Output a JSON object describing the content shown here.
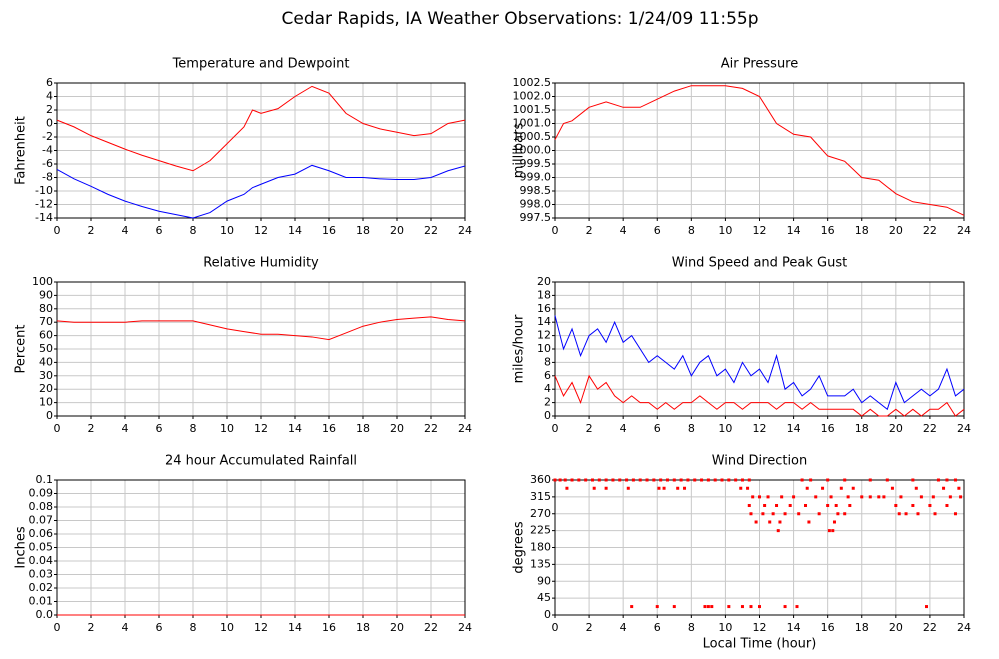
{
  "title": "Cedar Rapids, IA Weather Observations: 1/24/09 11:55p",
  "chart_data": [
    {
      "type": "line",
      "title": "Temperature and Dewpoint",
      "y_label": "Fahrenheit",
      "x": [
        0,
        1,
        2,
        3,
        4,
        5,
        6,
        7,
        8,
        9,
        10,
        11,
        11.5,
        12,
        13,
        14,
        15,
        16,
        17,
        18,
        19,
        20,
        21,
        22,
        23,
        24
      ],
      "series": [
        {
          "color": "#ff0000",
          "values": [
            0.5,
            -0.5,
            -1.8,
            -2.8,
            -3.8,
            -4.7,
            -5.5,
            -6.3,
            -7,
            -5.5,
            -3,
            -0.5,
            2,
            1.5,
            2.2,
            4,
            5.5,
            4.5,
            1.5,
            0,
            -0.8,
            -1.3,
            -1.8,
            -1.5,
            0,
            0.5
          ]
        },
        {
          "color": "#0000ff",
          "values": [
            -6.8,
            -8.2,
            -9.3,
            -10.5,
            -11.5,
            -12.3,
            -13,
            -13.5,
            -14,
            -13.2,
            -11.5,
            -10.5,
            -9.5,
            -9,
            -8,
            -7.5,
            -6.2,
            -7,
            -8,
            -8,
            -8.2,
            -8.3,
            -8.3,
            -8,
            -7,
            -6.3
          ]
        }
      ],
      "xlim": [
        0,
        24
      ],
      "xticks": [
        0,
        2,
        4,
        6,
        8,
        10,
        12,
        14,
        16,
        18,
        20,
        22,
        24
      ],
      "ylim": [
        -14,
        6
      ],
      "yticks": [
        -14,
        -12,
        -10,
        -8,
        -6,
        -4,
        -2,
        0,
        2,
        4,
        6
      ],
      "grid": true
    },
    {
      "type": "line",
      "title": "Air Pressure",
      "y_label": "millibars",
      "x": [
        0,
        0.5,
        1,
        2,
        3,
        4,
        5,
        6,
        7,
        8,
        9,
        10,
        11,
        12,
        13,
        14,
        15,
        16,
        17,
        18,
        19,
        20,
        21,
        22,
        23,
        24
      ],
      "series": [
        {
          "color": "#ff0000",
          "values": [
            1000.4,
            1001,
            1001.1,
            1001.6,
            1001.8,
            1001.6,
            1001.6,
            1001.9,
            1002.2,
            1002.4,
            1002.4,
            1002.4,
            1002.3,
            1002,
            1001,
            1000.6,
            1000.5,
            999.8,
            999.6,
            999,
            998.9,
            998.4,
            998.1,
            998,
            997.9,
            997.6
          ]
        }
      ],
      "xlim": [
        0,
        24
      ],
      "xticks": [
        0,
        2,
        4,
        6,
        8,
        10,
        12,
        14,
        16,
        18,
        20,
        22,
        24
      ],
      "ylim": [
        997.5,
        1002.5
      ],
      "yticks": [
        997.5,
        {
          "value": 998,
          "label": "998.0"
        },
        998.5,
        {
          "value": 999,
          "label": "999.0"
        },
        999.5,
        {
          "value": 1000,
          "label": "1000.0"
        },
        1000.5,
        {
          "value": 1001,
          "label": "1001.0"
        },
        1001.5,
        {
          "value": 1002,
          "label": "1002.0"
        },
        1002.5
      ],
      "grid": true
    },
    {
      "type": "line",
      "title": "Relative Humidity",
      "y_label": "Percent",
      "x": [
        0,
        1,
        2,
        3,
        4,
        5,
        6,
        7,
        8,
        9,
        10,
        11,
        12,
        13,
        14,
        15,
        16,
        17,
        18,
        19,
        20,
        21,
        22,
        23,
        24
      ],
      "series": [
        {
          "color": "#ff0000",
          "values": [
            71,
            70,
            70,
            70,
            70,
            71,
            71,
            71,
            71,
            68,
            65,
            63,
            61,
            61,
            60,
            59,
            57,
            62,
            67,
            70,
            72,
            73,
            74,
            72,
            71
          ]
        }
      ],
      "xlim": [
        0,
        24
      ],
      "xticks": [
        0,
        2,
        4,
        6,
        8,
        10,
        12,
        14,
        16,
        18,
        20,
        22,
        24
      ],
      "ylim": [
        0,
        100
      ],
      "yticks": [
        0,
        10,
        20,
        30,
        40,
        50,
        60,
        70,
        80,
        90,
        100
      ],
      "grid": true
    },
    {
      "type": "line",
      "title": "Wind Speed and Peak Gust",
      "y_label": "miles/hour",
      "x": [
        0,
        0.5,
        1,
        1.5,
        2,
        2.5,
        3,
        3.5,
        4,
        4.5,
        5,
        5.5,
        6,
        6.5,
        7,
        7.5,
        8,
        8.5,
        9,
        9.5,
        10,
        10.5,
        11,
        11.5,
        12,
        12.5,
        13,
        13.5,
        14,
        14.5,
        15,
        15.5,
        16,
        16.5,
        17,
        17.5,
        18,
        18.5,
        19,
        19.5,
        20,
        20.5,
        21,
        21.5,
        22,
        22.5,
        23,
        23.5,
        24
      ],
      "series": [
        {
          "color": "#0000ff",
          "values": [
            15,
            10,
            13,
            9,
            12,
            13,
            11,
            14,
            11,
            12,
            10,
            8,
            9,
            8,
            7,
            9,
            6,
            8,
            9,
            6,
            7,
            5,
            8,
            6,
            7,
            5,
            9,
            4,
            5,
            3,
            4,
            6,
            3,
            3,
            3,
            4,
            2,
            3,
            2,
            1,
            5,
            2,
            3,
            4,
            3,
            4,
            7,
            3,
            4
          ]
        },
        {
          "color": "#ff0000",
          "values": [
            6,
            3,
            5,
            2,
            6,
            4,
            5,
            3,
            2,
            3,
            2,
            2,
            1,
            2,
            1,
            2,
            2,
            3,
            2,
            1,
            2,
            2,
            1,
            2,
            2,
            2,
            1,
            2,
            2,
            1,
            2,
            1,
            1,
            1,
            1,
            1,
            0,
            1,
            0,
            0,
            1,
            0,
            1,
            0,
            1,
            1,
            2,
            0,
            1
          ]
        }
      ],
      "xlim": [
        0,
        24
      ],
      "xticks": [
        0,
        2,
        4,
        6,
        8,
        10,
        12,
        14,
        16,
        18,
        20,
        22,
        24
      ],
      "ylim": [
        0,
        20
      ],
      "yticks": [
        0,
        2,
        4,
        6,
        8,
        10,
        12,
        14,
        16,
        18,
        20
      ],
      "grid": true
    },
    {
      "type": "line",
      "title": "24 hour Accumulated Rainfall",
      "y_label": "Inches",
      "x": [
        0,
        24
      ],
      "series": [
        {
          "color": "#ff0000",
          "values": [
            0,
            0
          ]
        }
      ],
      "xlim": [
        0,
        24
      ],
      "xticks": [
        0,
        2,
        4,
        6,
        8,
        10,
        12,
        14,
        16,
        18,
        20,
        22,
        24
      ],
      "ylim": [
        0,
        0.1
      ],
      "yticks": [
        {
          "value": 0,
          "label": "0.0"
        },
        0.01,
        0.02,
        0.03,
        0.04,
        0.05,
        0.06,
        0.07,
        0.08,
        0.09,
        0.1
      ],
      "grid": true
    },
    {
      "type": "scatter",
      "title": "Wind Direction",
      "y_label": "degrees",
      "x_label": "Local Time (hour)",
      "x": [
        0,
        0.3,
        0.6,
        1,
        1.4,
        1.8,
        2.2,
        2.6,
        3,
        3.4,
        3.8,
        4.2,
        4.6,
        5,
        5.4,
        5.8,
        6.2,
        6.6,
        7,
        7.4,
        7.8,
        8.2,
        8.6,
        9,
        9.4,
        9.8,
        10.2,
        10.6,
        11,
        11.4,
        14.5,
        15,
        16,
        17,
        18.5,
        19.5,
        21,
        22.5,
        23,
        23.5,
        0.7,
        2.3,
        3,
        4.3,
        6.1,
        6.4,
        7.2,
        7.6,
        10.9,
        11.3,
        14.8,
        15.7,
        16.8,
        17.5,
        19.8,
        21.2,
        22.8,
        23.7,
        11.6,
        12,
        12.5,
        13.3,
        14,
        15.3,
        16.2,
        17.2,
        18,
        18.5,
        19,
        19.3,
        20.3,
        21.5,
        22.2,
        23.2,
        23.8,
        11.4,
        12.3,
        13,
        13.8,
        14.7,
        16,
        16.5,
        17.3,
        20,
        21,
        22,
        23,
        11.5,
        12.2,
        12.8,
        13.5,
        14.3,
        15.5,
        16.6,
        17,
        20.2,
        20.6,
        21.3,
        22.3,
        23.5,
        11.8,
        12.6,
        13.2,
        14.9,
        16.4,
        13.1,
        16.1,
        16.3,
        4.5,
        6,
        7,
        8.8,
        9,
        9.2,
        10.2,
        11,
        11.5,
        12,
        13.5,
        14.2,
        21.8
      ],
      "series": [
        {
          "color": "#ff0000",
          "values": [
            360,
            360,
            360,
            360,
            360,
            360,
            360,
            360,
            360,
            360,
            360,
            360,
            360,
            360,
            360,
            360,
            360,
            360,
            360,
            360,
            360,
            360,
            360,
            360,
            360,
            360,
            360,
            360,
            360,
            360,
            360,
            360,
            360,
            360,
            360,
            360,
            360,
            360,
            360,
            360,
            338,
            338,
            338,
            338,
            338,
            338,
            338,
            338,
            338,
            338,
            338,
            338,
            338,
            338,
            338,
            338,
            338,
            338,
            315,
            315,
            315,
            315,
            315,
            315,
            315,
            315,
            315,
            315,
            315,
            315,
            315,
            315,
            315,
            315,
            315,
            292,
            292,
            292,
            292,
            292,
            292,
            292,
            292,
            292,
            292,
            292,
            292,
            270,
            270,
            270,
            270,
            270,
            270,
            270,
            270,
            270,
            270,
            270,
            270,
            270,
            248,
            248,
            248,
            248,
            248,
            225,
            225,
            225,
            22.5,
            22.5,
            22.5,
            22.5,
            22.5,
            22.5,
            22.5,
            22.5,
            22.5,
            22.5,
            22.5,
            22.5,
            22.5
          ]
        }
      ],
      "xlim": [
        0,
        24
      ],
      "xticks": [
        0,
        2,
        4,
        6,
        8,
        10,
        12,
        14,
        16,
        18,
        20,
        22,
        24
      ],
      "ylim": [
        0,
        360
      ],
      "yticks": [
        0,
        45,
        90,
        135,
        180,
        225,
        270,
        315,
        360
      ],
      "grid": true
    }
  ]
}
